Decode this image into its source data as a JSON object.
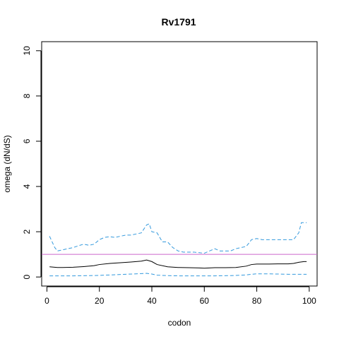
{
  "chart_data": {
    "type": "line",
    "title": "Rv1791",
    "xlabel": "codon",
    "ylabel": "omega (dN/dS)",
    "xlim": [
      -2,
      103
    ],
    "ylim": [
      -0.4,
      10.4
    ],
    "x_ticks": [
      0,
      20,
      40,
      60,
      80,
      100
    ],
    "x_tick_labels": [
      "0",
      "20",
      "40",
      "60",
      "80",
      "100"
    ],
    "y_ticks": [
      0,
      2,
      4,
      6,
      8,
      10
    ],
    "y_tick_labels": [
      "0",
      "2",
      "4",
      "6",
      "8",
      "10"
    ],
    "grid": false,
    "reference_line": {
      "y": 1,
      "color": "#cc66cc"
    },
    "series": [
      {
        "style": "solid",
        "color": "#000000",
        "x": [
          1,
          4,
          6,
          10,
          14,
          18,
          20,
          24,
          28,
          32,
          36,
          38,
          40,
          42,
          46,
          50,
          54,
          58,
          60,
          64,
          68,
          72,
          76,
          78,
          80,
          84,
          88,
          92,
          94,
          96,
          98,
          99
        ],
        "y": [
          0.45,
          0.42,
          0.42,
          0.43,
          0.46,
          0.5,
          0.55,
          0.6,
          0.63,
          0.66,
          0.7,
          0.75,
          0.68,
          0.55,
          0.45,
          0.42,
          0.41,
          0.4,
          0.39,
          0.41,
          0.41,
          0.42,
          0.48,
          0.55,
          0.57,
          0.57,
          0.58,
          0.58,
          0.6,
          0.65,
          0.68,
          0.68
        ]
      },
      {
        "style": "dashed",
        "color": "#3399dd",
        "x": [
          1,
          2,
          3,
          4,
          6,
          8,
          10,
          12,
          14,
          16,
          18,
          20,
          22,
          24,
          26,
          28,
          30,
          32,
          34,
          36,
          38,
          39,
          40,
          42,
          44,
          46,
          48,
          50,
          52,
          56,
          60,
          62,
          64,
          66,
          68,
          70,
          72,
          74,
          76,
          78,
          80,
          82,
          84,
          86,
          88,
          90,
          92,
          94,
          96,
          97,
          98,
          99
        ],
        "y": [
          1.8,
          1.55,
          1.3,
          1.15,
          1.2,
          1.25,
          1.3,
          1.38,
          1.45,
          1.4,
          1.45,
          1.65,
          1.75,
          1.78,
          1.75,
          1.8,
          1.85,
          1.85,
          1.9,
          1.95,
          2.3,
          2.35,
          2.0,
          1.95,
          1.55,
          1.55,
          1.3,
          1.15,
          1.1,
          1.1,
          1.05,
          1.15,
          1.25,
          1.15,
          1.15,
          1.15,
          1.25,
          1.3,
          1.35,
          1.65,
          1.7,
          1.65,
          1.65,
          1.65,
          1.65,
          1.65,
          1.65,
          1.65,
          1.95,
          2.4,
          2.4,
          2.4
        ]
      },
      {
        "style": "dashed",
        "color": "#3399dd",
        "x": [
          1,
          10,
          16,
          20,
          24,
          30,
          34,
          38,
          40,
          42,
          46,
          50,
          56,
          60,
          64,
          70,
          76,
          78,
          80,
          84,
          88,
          92,
          96,
          99
        ],
        "y": [
          0.05,
          0.05,
          0.06,
          0.07,
          0.09,
          0.12,
          0.14,
          0.16,
          0.13,
          0.08,
          0.06,
          0.05,
          0.05,
          0.05,
          0.05,
          0.06,
          0.09,
          0.12,
          0.14,
          0.14,
          0.13,
          0.12,
          0.12,
          0.12
        ]
      }
    ]
  }
}
